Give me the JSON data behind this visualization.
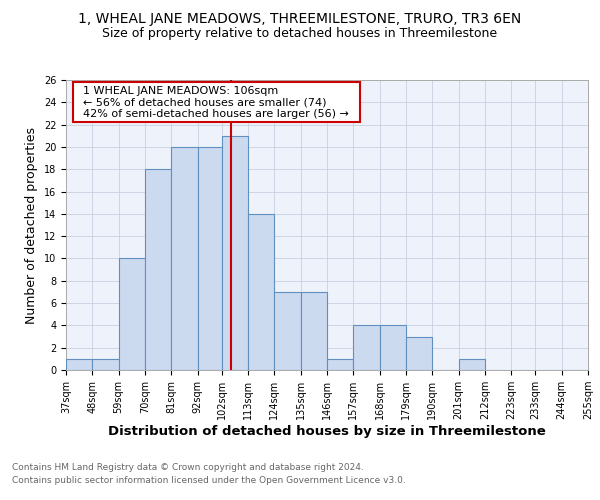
{
  "title": "1, WHEAL JANE MEADOWS, THREEMILESTONE, TRURO, TR3 6EN",
  "subtitle": "Size of property relative to detached houses in Threemilestone",
  "xlabel": "Distribution of detached houses by size in Threemilestone",
  "ylabel": "Number of detached properties",
  "footnote1": "Contains HM Land Registry data © Crown copyright and database right 2024.",
  "footnote2": "Contains public sector information licensed under the Open Government Licence v3.0.",
  "annotation_line1": "1 WHEAL JANE MEADOWS: 106sqm",
  "annotation_line2": "← 56% of detached houses are smaller (74)",
  "annotation_line3": "42% of semi-detached houses are larger (56) →",
  "bar_color": "#ccdaf0",
  "bar_edge_color": "#6090c0",
  "ref_line_color": "#cc0000",
  "ref_line_x": 106,
  "categories": [
    "37sqm",
    "48sqm",
    "59sqm",
    "70sqm",
    "81sqm",
    "92sqm",
    "102sqm",
    "113sqm",
    "124sqm",
    "135sqm",
    "146sqm",
    "157sqm",
    "168sqm",
    "179sqm",
    "190sqm",
    "201sqm",
    "212sqm",
    "223sqm",
    "233sqm",
    "244sqm",
    "255sqm"
  ],
  "bin_edges": [
    37,
    48,
    59,
    70,
    81,
    92,
    102,
    113,
    124,
    135,
    146,
    157,
    168,
    179,
    190,
    201,
    212,
    223,
    233,
    244,
    255
  ],
  "values": [
    1,
    1,
    10,
    18,
    20,
    20,
    21,
    14,
    7,
    7,
    1,
    4,
    4,
    3,
    0,
    1,
    0,
    0,
    0,
    0
  ],
  "ylim": [
    0,
    26
  ],
  "yticks": [
    0,
    2,
    4,
    6,
    8,
    10,
    12,
    14,
    16,
    18,
    20,
    22,
    24,
    26
  ],
  "background_color": "#eef2fa",
  "grid_color": "#c8d0e0",
  "title_fontsize": 10,
  "subtitle_fontsize": 9,
  "axis_label_fontsize": 9,
  "tick_fontsize": 7,
  "annotation_fontsize": 8,
  "footnote_fontsize": 6.5
}
